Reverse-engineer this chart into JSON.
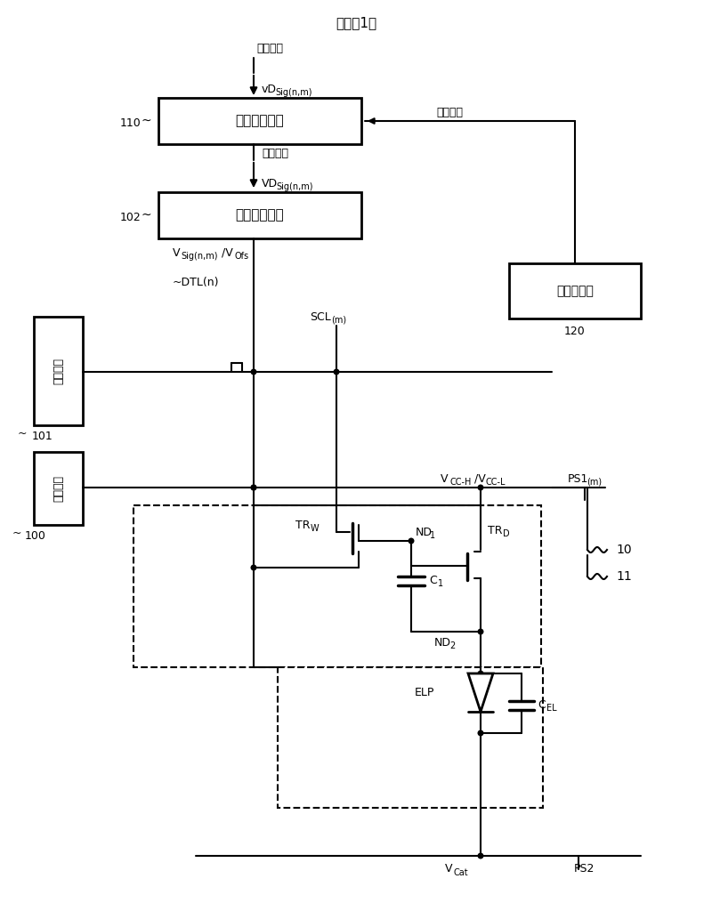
{
  "title": "（示例1）",
  "bg": "#ffffff",
  "box110_label": "亮度校正单元",
  "box102_label": "信号输出电路",
  "box101_label": "扫描电路",
  "box100_label": "电源单元",
  "box120_label": "温度传感器",
  "label_110": "110",
  "label_102": "102",
  "label_101": "101",
  "label_100": "100",
  "label_120": "120",
  "text_input": "输入信号",
  "text_video": "视频信号",
  "text_dtl": "~DTL(n)",
  "text_temp_info": "温度信息",
  "text_vcc": "VCC-H/VCC-L",
  "text_ps1": "PS1",
  "text_ps1m": "(m)",
  "text_ps2": "PS2",
  "text_vcat": "VCat",
  "text_elp": "ELP",
  "text_10": "10",
  "text_11": "11"
}
